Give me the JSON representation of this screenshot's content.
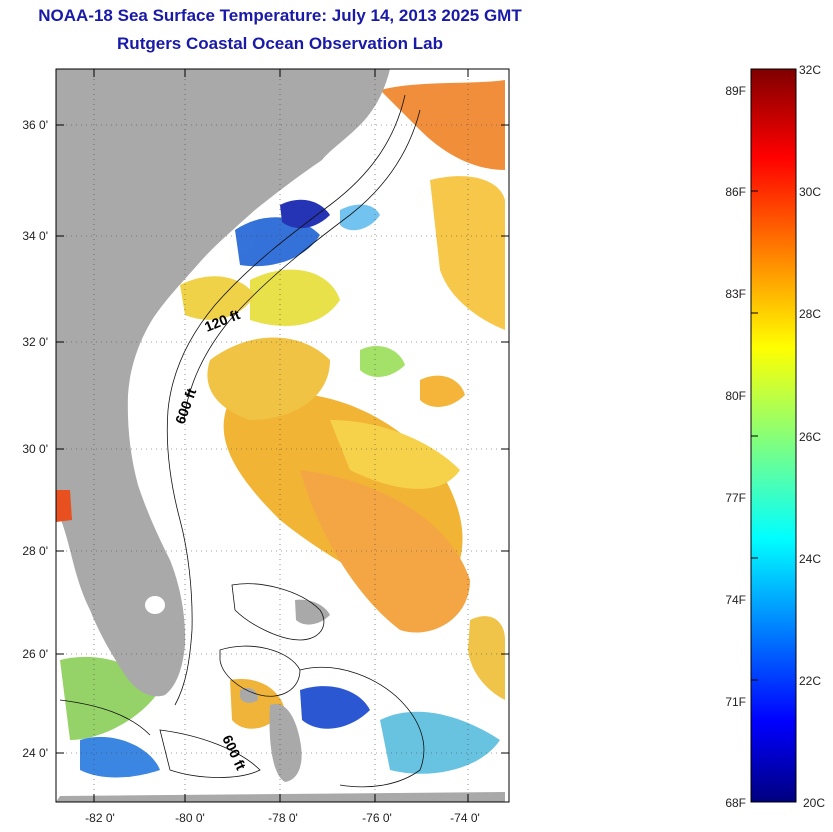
{
  "title": "NOAA-18 Sea Surface Temperature:  July 14, 2013 2025 GMT",
  "subtitle": "Rutgers Coastal Ocean Observation Lab",
  "map": {
    "lat_labels": [
      "36 0'",
      "34 0'",
      "32 0'",
      "30 0'",
      "28 0'",
      "26 0'",
      "24 0'"
    ],
    "lon_labels": [
      "-82 0'",
      "-80 0'",
      "-78 0'",
      "-76 0'",
      "-74 0'"
    ],
    "contour_labels": [
      "120 ft",
      "600 ft",
      "600 ft"
    ],
    "land_color": "#a9a9a9"
  },
  "colorbar": {
    "celsius_labels": [
      "32C",
      "30C",
      "28C",
      "26C",
      "24C",
      "22C",
      "20C"
    ],
    "fahrenheit_labels": [
      "89F",
      "86F",
      "83F",
      "80F",
      "77F",
      "74F",
      "71F",
      "68F"
    ],
    "range_c": [
      20,
      32
    ],
    "colormap": "jet"
  }
}
